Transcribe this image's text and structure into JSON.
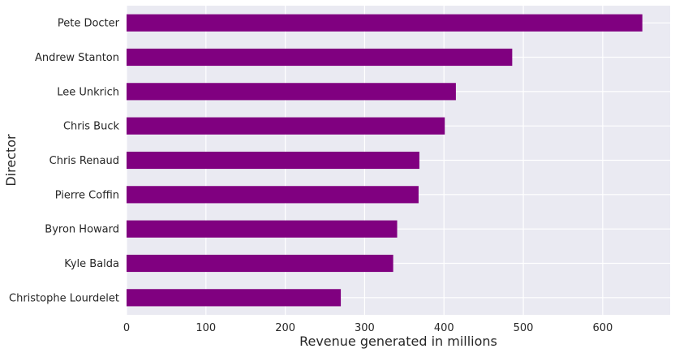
{
  "chart_data": {
    "type": "bar",
    "orientation": "horizontal",
    "categories": [
      "Pete Docter",
      "Andrew Stanton",
      "Lee Unkrich",
      "Chris Buck",
      "Chris Renaud",
      "Pierre Coffin",
      "Byron Howard",
      "Kyle Balda",
      "Christophe Lourdelet"
    ],
    "values": [
      650,
      486,
      415,
      401,
      369,
      368,
      341,
      336,
      270
    ],
    "title": "",
    "xlabel": "Revenue generated in millions",
    "ylabel": "Director",
    "xlim": [
      0,
      685
    ],
    "xticks": [
      0,
      100,
      200,
      300,
      400,
      500,
      600
    ],
    "grid": true,
    "legend": "none",
    "colors": {
      "bar": "#800080",
      "plot_background": "#eaeaf2",
      "grid": "#ffffff"
    }
  }
}
